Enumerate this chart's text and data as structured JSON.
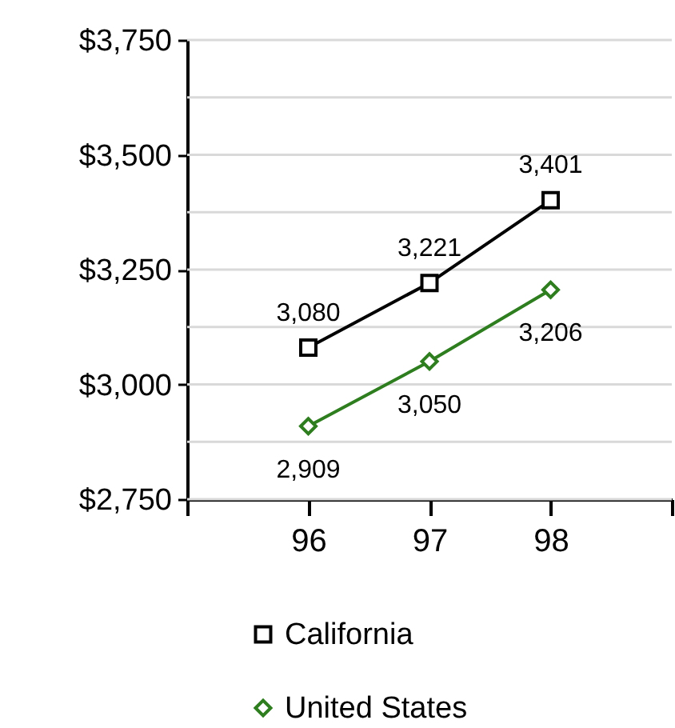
{
  "chart_data": {
    "type": "line",
    "x": [
      96,
      97,
      98
    ],
    "xlim": [
      95,
      99
    ],
    "xticks": [
      {
        "value": 95,
        "label": null
      },
      96,
      97,
      98,
      {
        "value": 99,
        "label": null
      }
    ],
    "ylim": [
      2750,
      3750
    ],
    "yticks": [
      {
        "value": 2750,
        "label": "$2,750"
      },
      {
        "value": 2875,
        "label": null
      },
      {
        "value": 3000,
        "label": "$3,000"
      },
      {
        "value": 3125,
        "label": null
      },
      {
        "value": 3250,
        "label": "$3,250"
      },
      {
        "value": 3375,
        "label": null
      },
      {
        "value": 3500,
        "label": "$3,500"
      },
      {
        "value": 3625,
        "label": null
      },
      {
        "value": 3750,
        "label": "$3,750"
      }
    ],
    "series": [
      {
        "name": "California",
        "color": "#000000",
        "marker": "square",
        "values": [
          3080,
          3221,
          3401
        ],
        "value_labels": [
          "3,080",
          "3,221",
          "3,401"
        ]
      },
      {
        "name": "United States",
        "color": "#2e7d1e",
        "marker": "diamond",
        "values": [
          2909,
          3050,
          3206
        ],
        "value_labels": [
          "2,909",
          "3,050",
          "3,206"
        ]
      }
    ],
    "grid": "y",
    "legend": "bottom",
    "line_style": "solid"
  }
}
